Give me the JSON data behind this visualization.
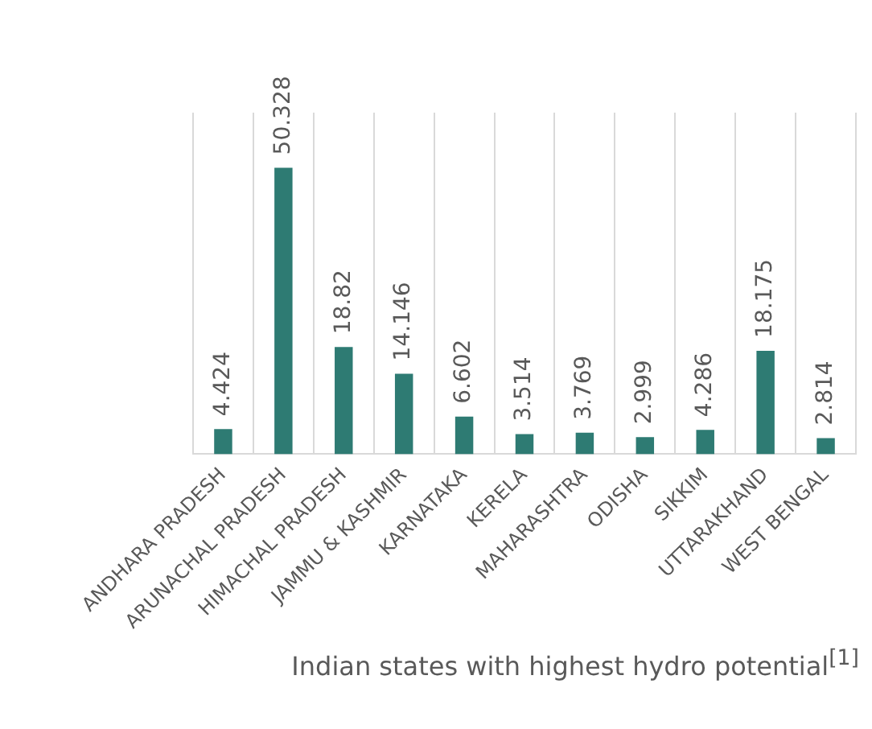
{
  "chart_data": {
    "type": "bar",
    "title": "Indian states with highest hydro potential$^{[1]}$",
    "categories": [
      "ANDHARA PRADESH",
      "ARUNACHAL PRADESH",
      "HIMACHAL PRADESH",
      "JAMMU & KASHMIR",
      "KARNATAKA",
      "KERELA",
      "MAHARASHTRA",
      "ODISHA",
      "SIKKIM",
      "UTTARAKHAND",
      "WEST BENGAL"
    ],
    "values": [
      4.424,
      50.328,
      18.82,
      14.146,
      6.602,
      3.514,
      3.769,
      2.999,
      4.286,
      18.175,
      2.814
    ],
    "color": "#2e7b73",
    "data_labels": true,
    "grid": "x",
    "legend": false
  }
}
